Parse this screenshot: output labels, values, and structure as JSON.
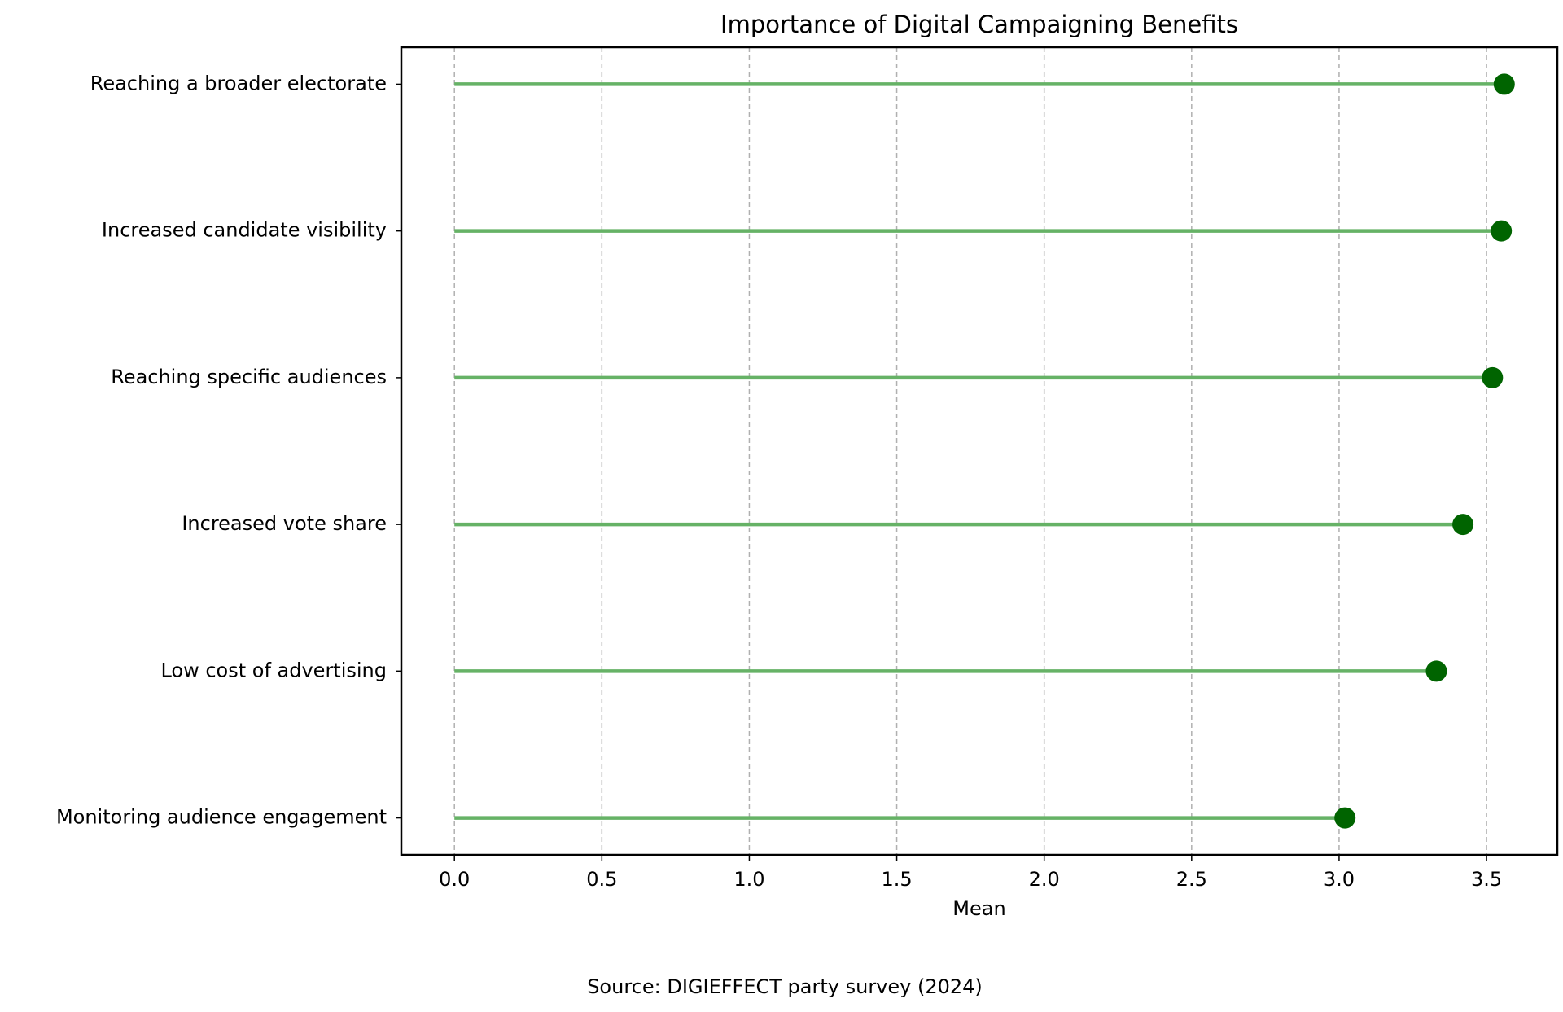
{
  "chart_data": {
    "type": "lollipop",
    "title": "Importance of Digital Campaigning Benefits",
    "categories": [
      "Reaching a broader electorate",
      "Increased candidate visibility",
      "Reaching specific audiences",
      "Increased vote share",
      "Low cost of advertising",
      "Monitoring audience engagement"
    ],
    "values": [
      3.56,
      3.55,
      3.52,
      3.42,
      3.33,
      3.02
    ],
    "stem_color": "#66b266",
    "color": "#006400",
    "xlabel": "Mean",
    "xlim": [
      -0.18,
      3.74
    ],
    "xticks": [
      {
        "value": 0,
        "label": "0.0"
      },
      {
        "value": 0.5,
        "label": "0.5"
      },
      {
        "value": 1,
        "label": "1.0"
      },
      {
        "value": 1.5,
        "label": "1.5"
      },
      {
        "value": 2,
        "label": "2.0"
      },
      {
        "value": 2.5,
        "label": "2.5"
      },
      {
        "value": 3,
        "label": "3.0"
      },
      {
        "value": 3.5,
        "label": "3.5"
      }
    ],
    "grid": true,
    "caption": "Source: DIGIEFFECT party survey (2024)"
  }
}
